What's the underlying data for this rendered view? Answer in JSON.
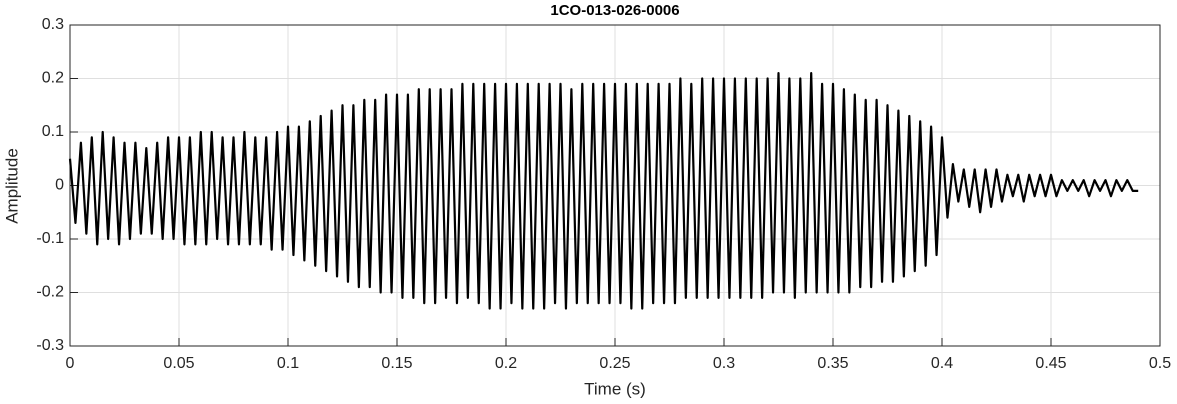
{
  "chart_data": {
    "type": "line",
    "title": "1CO-013-026-0006",
    "xlabel": "Time (s)",
    "ylabel": "Amplitude",
    "xlim": [
      0,
      0.5
    ],
    "xticks": [
      0,
      0.05,
      0.1,
      0.15,
      0.2,
      0.25,
      0.3,
      0.35,
      0.4,
      0.45,
      0.5
    ],
    "ylim": [
      -0.3,
      0.3
    ],
    "yticks": [
      -0.3,
      -0.2,
      -0.1,
      0,
      0.1,
      0.2,
      0.3
    ],
    "grid": true,
    "color": "#000000",
    "x": [
      0,
      0.0025,
      0.005,
      0.0075,
      0.01,
      0.0125,
      0.015,
      0.0175,
      0.02,
      0.0225,
      0.025,
      0.0275,
      0.03,
      0.0325,
      0.035,
      0.0375,
      0.04,
      0.0425,
      0.045,
      0.0475,
      0.05,
      0.0525,
      0.055,
      0.0575,
      0.06,
      0.0625,
      0.065,
      0.0675,
      0.07,
      0.0725,
      0.075,
      0.0775,
      0.08,
      0.0825,
      0.085,
      0.0875,
      0.09,
      0.0925,
      0.095,
      0.0975,
      0.1,
      0.1025,
      0.105,
      0.1075,
      0.11,
      0.1125,
      0.115,
      0.1175,
      0.12,
      0.1225,
      0.125,
      0.1275,
      0.13,
      0.1325,
      0.135,
      0.1375,
      0.14,
      0.1425,
      0.145,
      0.1475,
      0.15,
      0.1525,
      0.155,
      0.1575,
      0.16,
      0.1625,
      0.165,
      0.1675,
      0.17,
      0.1725,
      0.175,
      0.1775,
      0.18,
      0.1825,
      0.185,
      0.1875,
      0.19,
      0.1925,
      0.195,
      0.1975,
      0.2,
      0.2025,
      0.205,
      0.2075,
      0.21,
      0.2125,
      0.215,
      0.2175,
      0.22,
      0.2225,
      0.225,
      0.2275,
      0.23,
      0.2325,
      0.235,
      0.2375,
      0.24,
      0.2425,
      0.245,
      0.2475,
      0.25,
      0.2525,
      0.255,
      0.2575,
      0.26,
      0.2625,
      0.265,
      0.2675,
      0.27,
      0.2725,
      0.275,
      0.2775,
      0.28,
      0.2825,
      0.285,
      0.2875,
      0.29,
      0.2925,
      0.295,
      0.2975,
      0.3,
      0.3025,
      0.305,
      0.3075,
      0.31,
      0.3125,
      0.315,
      0.3175,
      0.32,
      0.3225,
      0.325,
      0.3275,
      0.33,
      0.3325,
      0.335,
      0.3375,
      0.34,
      0.3425,
      0.345,
      0.3475,
      0.35,
      0.3525,
      0.355,
      0.3575,
      0.36,
      0.3625,
      0.365,
      0.3675,
      0.37,
      0.3725,
      0.375,
      0.3775,
      0.38,
      0.3825,
      0.385,
      0.3875,
      0.39,
      0.3925,
      0.395,
      0.3975,
      0.4,
      0.4025,
      0.405,
      0.4075,
      0.41,
      0.4125,
      0.415,
      0.4175,
      0.42,
      0.4225,
      0.425,
      0.4275,
      0.43,
      0.4325,
      0.435,
      0.4375,
      0.44,
      0.4425,
      0.445,
      0.4475,
      0.45,
      0.4525,
      0.455,
      0.4575,
      0.46,
      0.4625,
      0.465,
      0.4675,
      0.47,
      0.4725,
      0.475,
      0.4775,
      0.48,
      0.4825,
      0.485,
      0.4875,
      0.49
    ],
    "values": [
      0.05,
      -0.07,
      0.08,
      -0.09,
      0.09,
      -0.11,
      0.1,
      -0.1,
      0.09,
      -0.11,
      0.08,
      -0.1,
      0.08,
      -0.09,
      0.07,
      -0.09,
      0.08,
      -0.1,
      0.09,
      -0.1,
      0.09,
      -0.11,
      0.09,
      -0.11,
      0.1,
      -0.11,
      0.1,
      -0.1,
      0.09,
      -0.11,
      0.09,
      -0.11,
      0.1,
      -0.11,
      0.09,
      -0.11,
      0.09,
      -0.12,
      0.1,
      -0.12,
      0.11,
      -0.13,
      0.11,
      -0.14,
      0.12,
      -0.15,
      0.13,
      -0.16,
      0.14,
      -0.17,
      0.15,
      -0.18,
      0.15,
      -0.19,
      0.16,
      -0.19,
      0.16,
      -0.2,
      0.17,
      -0.2,
      0.17,
      -0.21,
      0.17,
      -0.21,
      0.18,
      -0.22,
      0.18,
      -0.22,
      0.18,
      -0.21,
      0.18,
      -0.22,
      0.19,
      -0.21,
      0.19,
      -0.22,
      0.19,
      -0.23,
      0.19,
      -0.23,
      0.19,
      -0.22,
      0.19,
      -0.23,
      0.19,
      -0.23,
      0.19,
      -0.23,
      0.19,
      -0.22,
      0.19,
      -0.23,
      0.18,
      -0.22,
      0.19,
      -0.22,
      0.19,
      -0.22,
      0.19,
      -0.22,
      0.19,
      -0.22,
      0.19,
      -0.23,
      0.19,
      -0.23,
      0.19,
      -0.22,
      0.19,
      -0.22,
      0.19,
      -0.22,
      0.2,
      -0.21,
      0.19,
      -0.21,
      0.2,
      -0.21,
      0.2,
      -0.21,
      0.2,
      -0.21,
      0.2,
      -0.21,
      0.2,
      -0.21,
      0.2,
      -0.21,
      0.2,
      -0.2,
      0.21,
      -0.2,
      0.2,
      -0.21,
      0.2,
      -0.2,
      0.21,
      -0.2,
      0.19,
      -0.2,
      0.19,
      -0.2,
      0.18,
      -0.2,
      0.17,
      -0.19,
      0.16,
      -0.19,
      0.16,
      -0.18,
      0.15,
      -0.18,
      0.14,
      -0.17,
      0.13,
      -0.16,
      0.12,
      -0.15,
      0.11,
      -0.13,
      0.09,
      -0.06,
      0.04,
      -0.03,
      0.03,
      -0.04,
      0.03,
      -0.05,
      0.03,
      -0.04,
      0.03,
      -0.03,
      0.02,
      -0.02,
      0.02,
      -0.03,
      0.02,
      -0.02,
      0.02,
      -0.02,
      0.02,
      -0.02,
      0.01,
      -0.01,
      0.01,
      -0.01,
      0.01,
      -0.02,
      0.01,
      -0.01,
      0.01,
      -0.02,
      0.01,
      -0.01,
      0.01,
      -0.01,
      -0.01
    ]
  }
}
